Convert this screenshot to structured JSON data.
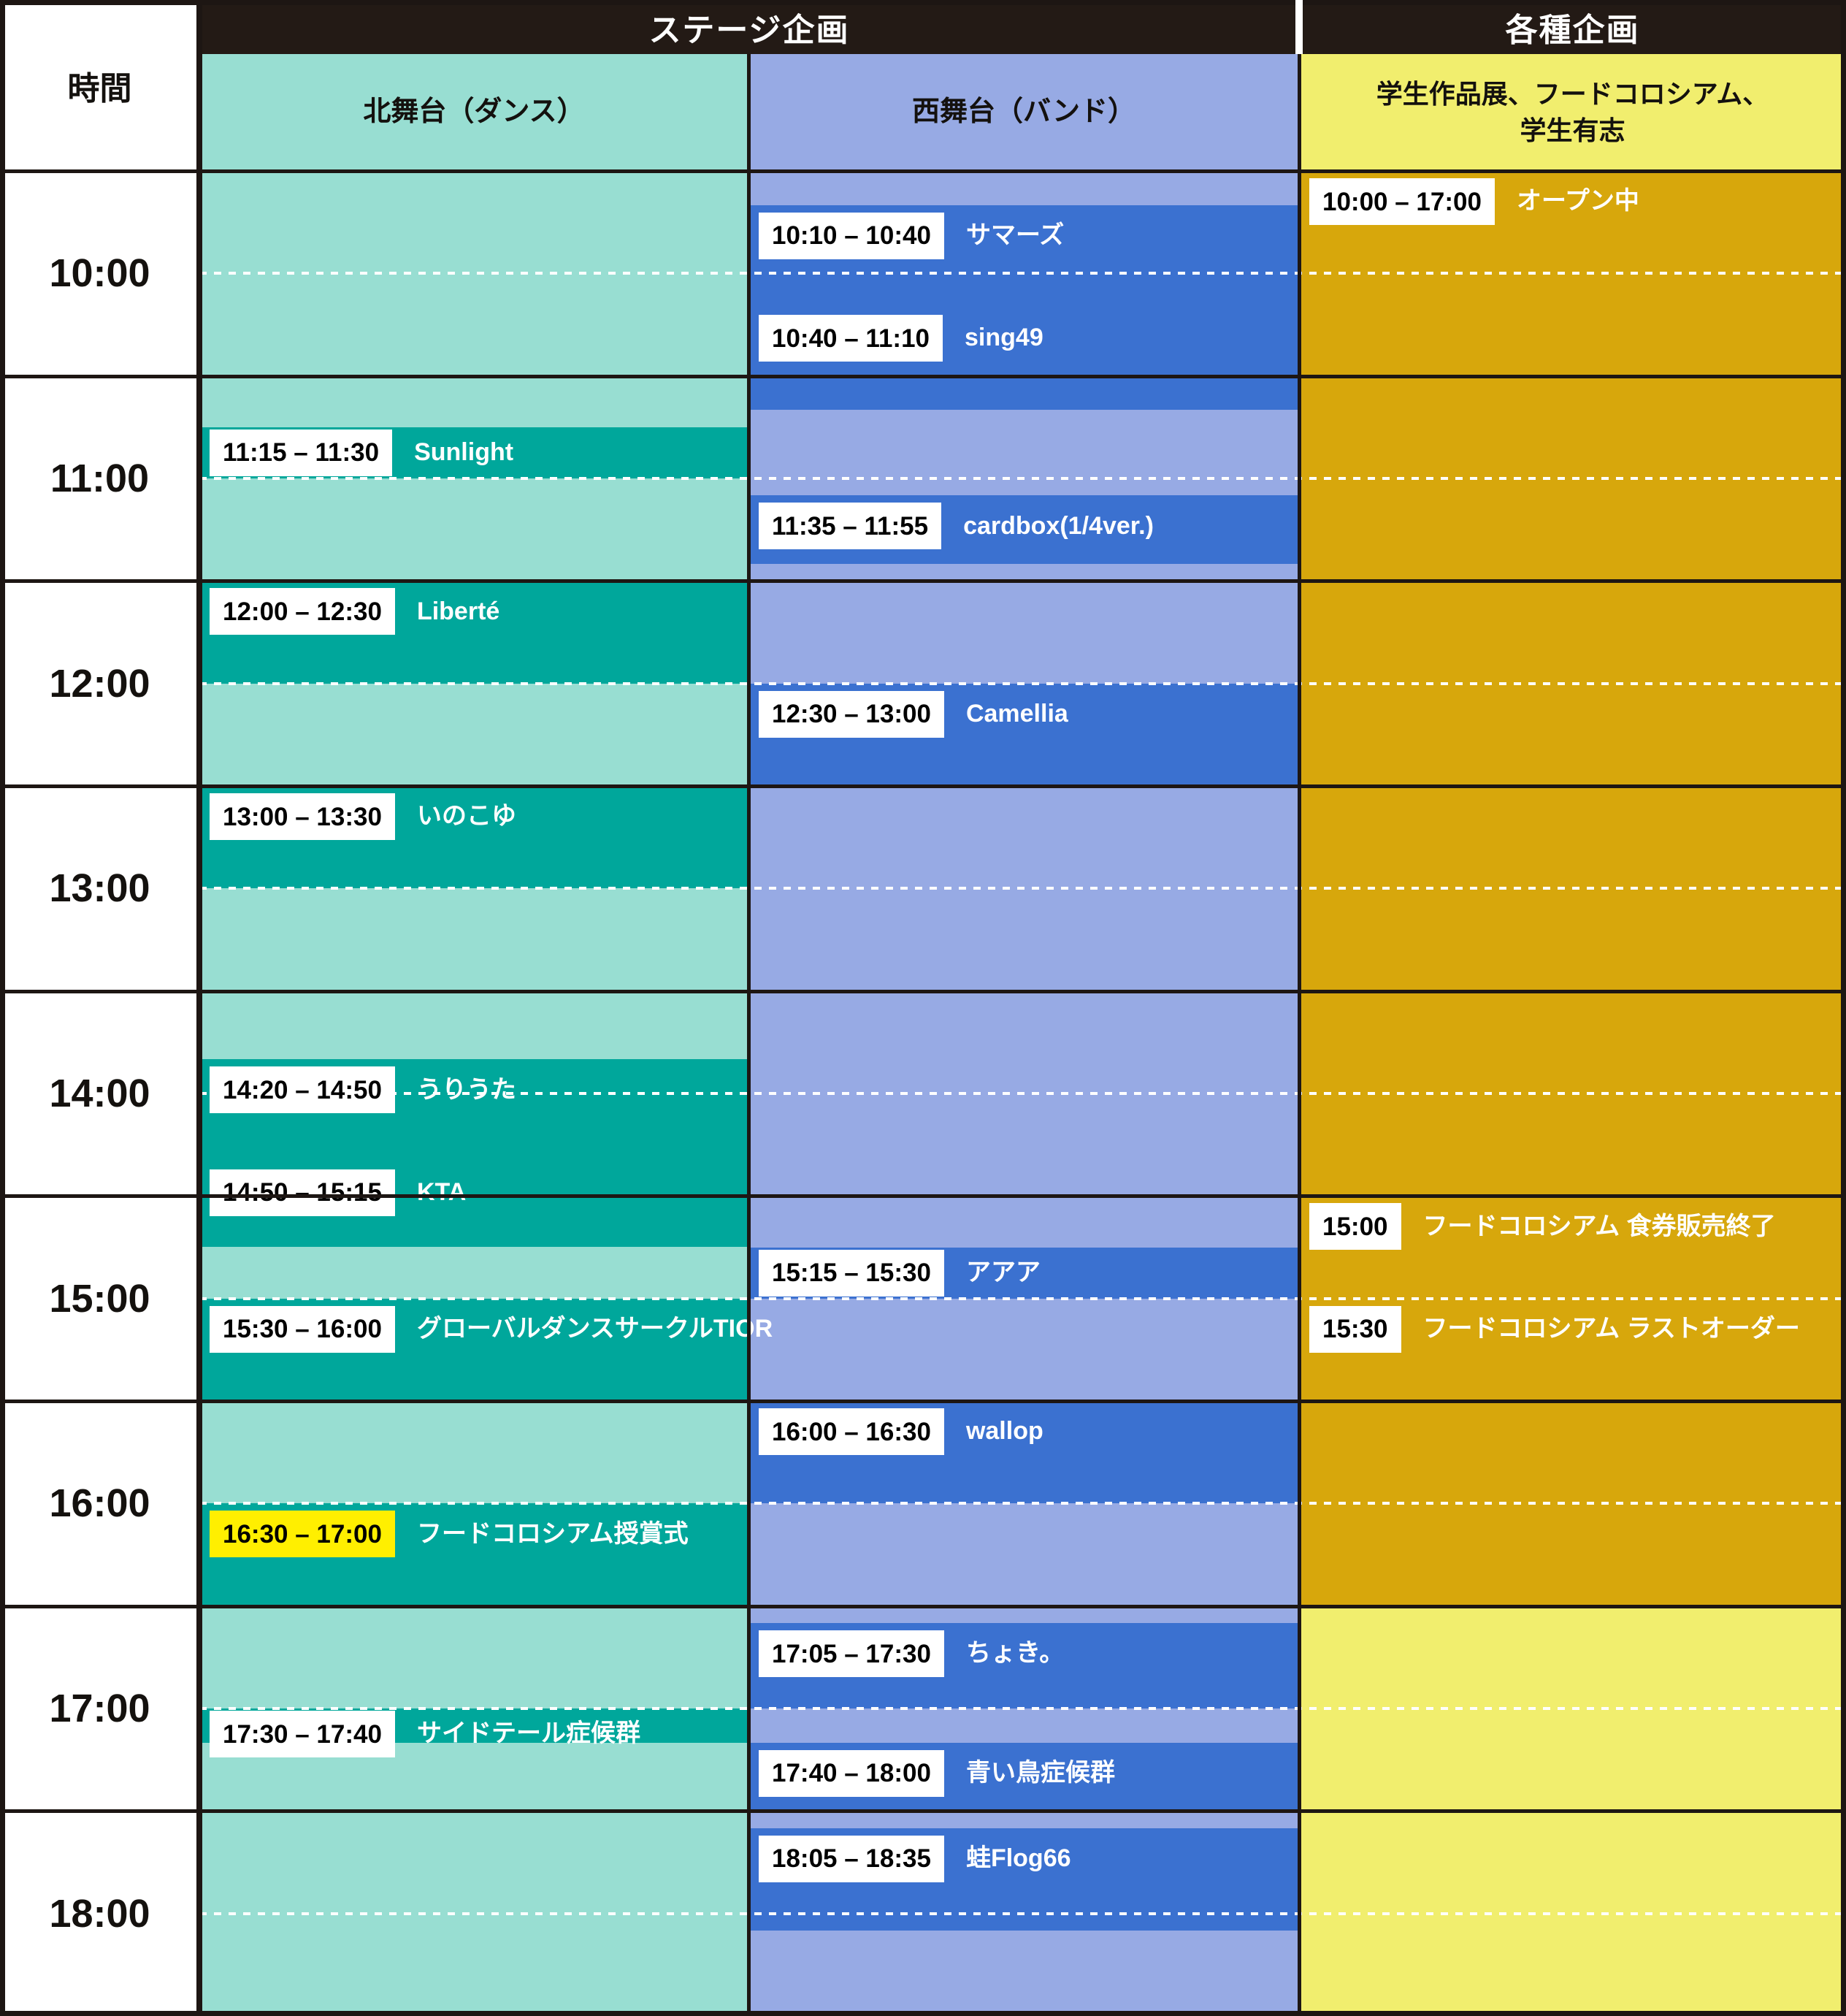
{
  "header": {
    "time_col_label": "時間",
    "stage_group_label": "ステージ企画",
    "misc_group_label": "各種企画",
    "north_stage_label": "北舞台（ダンス）",
    "west_stage_label": "西舞台（バンド）",
    "misc_label_line1": "学生作品展、フードコロシアム、",
    "misc_label_line2": "学生有志"
  },
  "time_axis": {
    "start": "10:00",
    "end": "19:00",
    "hour_labels": [
      "10:00",
      "11:00",
      "12:00",
      "13:00",
      "14:00",
      "15:00",
      "16:00",
      "17:00",
      "18:00"
    ]
  },
  "colors": {
    "header_black": "#231a15",
    "north_light": "#98ded2",
    "north_dark": "#00a79b",
    "west_light": "#97aae4",
    "west_dark": "#3b71d0",
    "misc_gold": "#d7a70c",
    "misc_yellow": "#f1ee6e",
    "chip_white": "#ffffff",
    "chip_highlight": "#ffef00",
    "grid_black": "#1d1613"
  },
  "schedule": {
    "north": {
      "events": [
        {
          "start": "11:15",
          "end": "11:30",
          "time_label": "11:15 – 11:30",
          "name": "Sunlight",
          "highlight": false
        },
        {
          "start": "12:00",
          "end": "12:30",
          "time_label": "12:00 – 12:30",
          "name": "Liberté",
          "highlight": false
        },
        {
          "start": "13:00",
          "end": "13:30",
          "time_label": "13:00 – 13:30",
          "name": "いのこゆ",
          "highlight": false
        },
        {
          "start": "14:20",
          "end": "14:50",
          "time_label": "14:20 – 14:50",
          "name": "うりうた",
          "highlight": false
        },
        {
          "start": "14:50",
          "end": "15:15",
          "time_label": "14:50 – 15:15",
          "name": "KTA",
          "highlight": false
        },
        {
          "start": "15:30",
          "end": "16:00",
          "time_label": "15:30 – 16:00",
          "name": "グローバルダンスサークルTIOR",
          "highlight": false
        },
        {
          "start": "16:30",
          "end": "17:00",
          "time_label": "16:30 – 17:00",
          "name": "フードコロシアム授賞式",
          "highlight": true
        },
        {
          "start": "17:30",
          "end": "17:40",
          "time_label": "17:30 – 17:40",
          "name": "サイドテール症候群",
          "highlight": false
        }
      ]
    },
    "west": {
      "events": [
        {
          "start": "10:10",
          "end": "10:40",
          "time_label": "10:10 – 10:40",
          "name": "サマーズ",
          "highlight": false
        },
        {
          "start": "10:40",
          "end": "11:10",
          "time_label": "10:40 – 11:10",
          "name": "sing49",
          "highlight": false
        },
        {
          "start": "11:35",
          "end": "11:55",
          "time_label": "11:35 – 11:55",
          "name": "cardbox(1/4ver.)",
          "highlight": false
        },
        {
          "start": "12:30",
          "end": "13:00",
          "time_label": "12:30 – 13:00",
          "name": "Camellia",
          "highlight": false
        },
        {
          "start": "15:15",
          "end": "15:30",
          "time_label": "15:15 – 15:30",
          "name": "アアア",
          "highlight": false
        },
        {
          "start": "16:00",
          "end": "16:30",
          "time_label": "16:00 – 16:30",
          "name": "wallop",
          "highlight": false
        },
        {
          "start": "17:05",
          "end": "17:30",
          "time_label": "17:05 – 17:30",
          "name": "ちょき。",
          "highlight": false
        },
        {
          "start": "17:40",
          "end": "18:00",
          "time_label": "17:40 – 18:00",
          "name": "青い鳥症候群",
          "highlight": false
        },
        {
          "start": "18:05",
          "end": "18:35",
          "time_label": "18:05 – 18:35",
          "name": "蛙Flog66",
          "highlight": false
        }
      ]
    },
    "misc": {
      "background_periods": [
        {
          "start": "10:00",
          "end": "17:00",
          "color_key": "misc_gold"
        },
        {
          "start": "17:00",
          "end": "19:00",
          "color_key": "misc_yellow"
        }
      ],
      "events": [
        {
          "at": "10:00",
          "time_label": "10:00 – 17:00",
          "name": "オープン中"
        },
        {
          "at": "15:00",
          "time_label": "15:00",
          "name": "フードコロシアム 食券販売終了"
        },
        {
          "at": "15:30",
          "time_label": "15:30",
          "name": "フードコロシアム ラストオーダー"
        }
      ]
    }
  }
}
